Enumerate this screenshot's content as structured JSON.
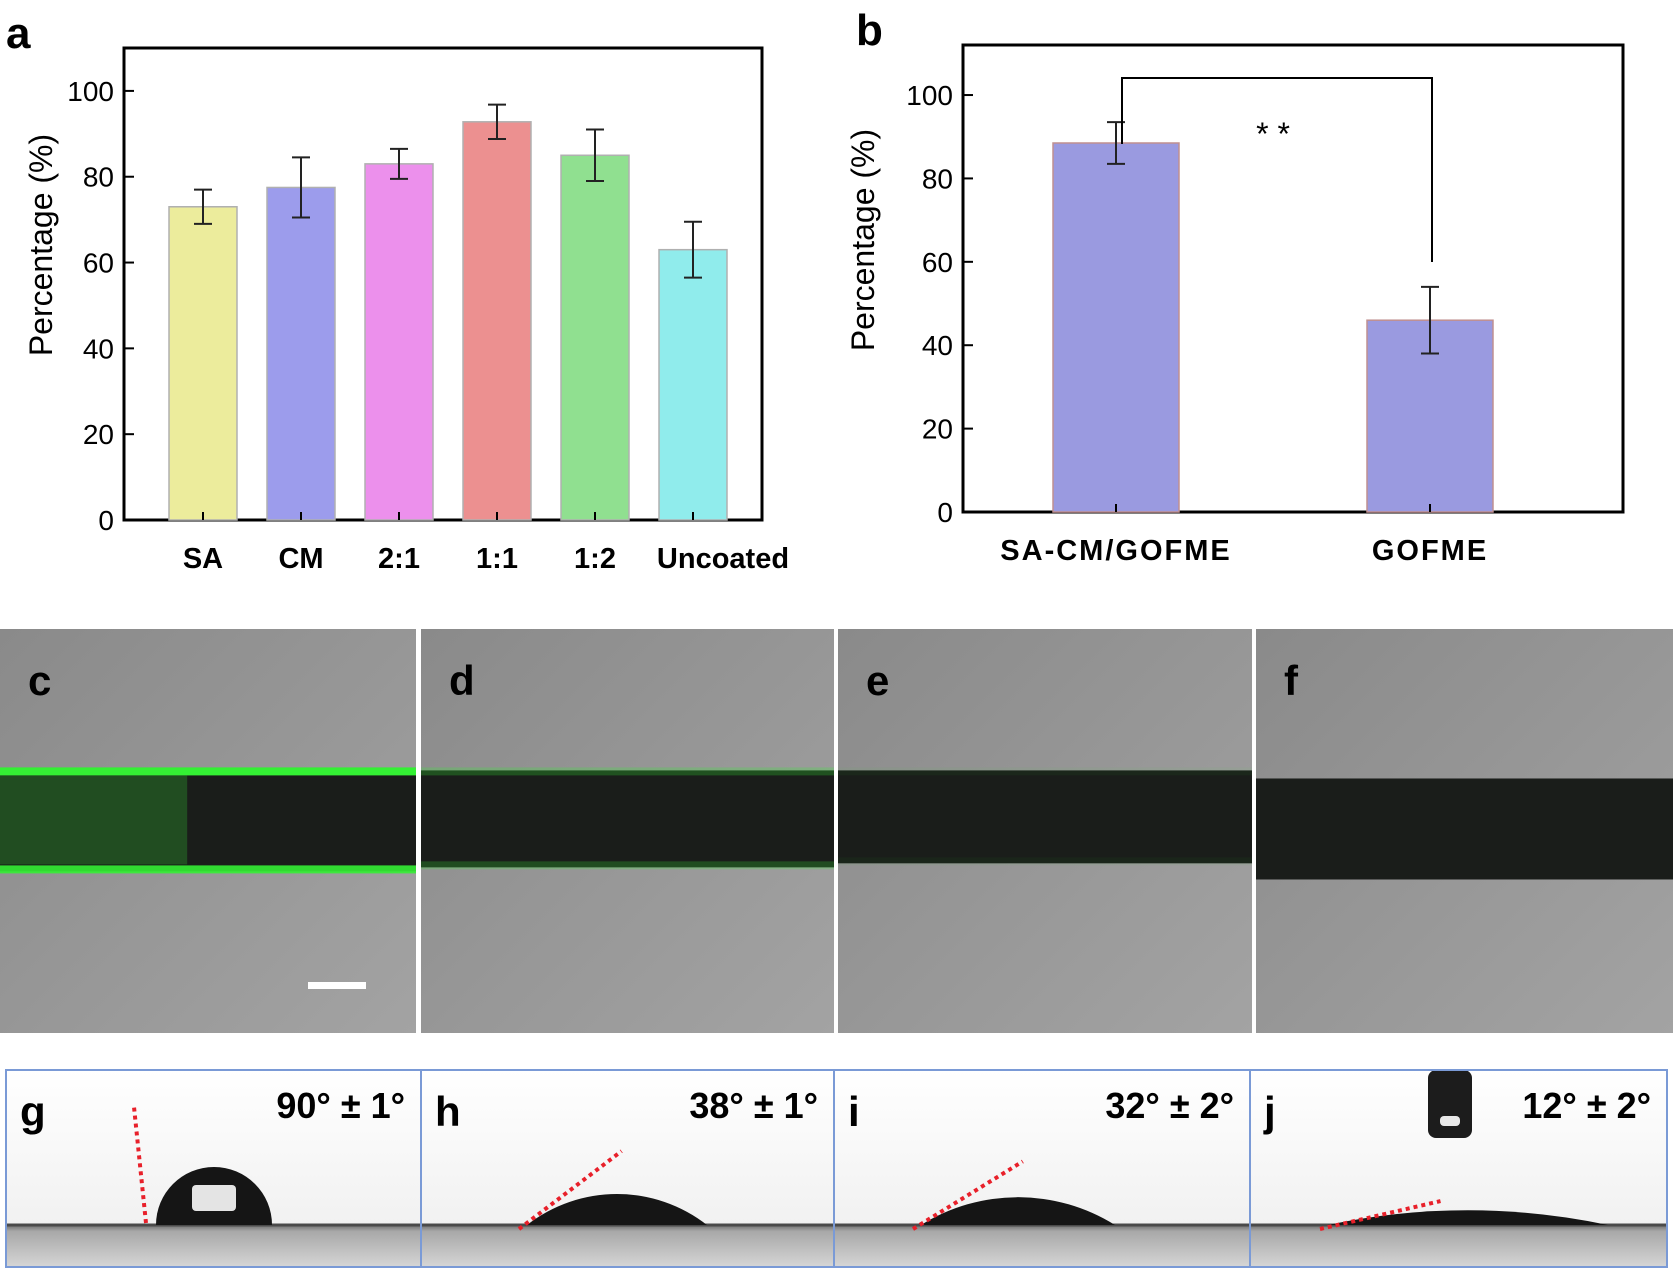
{
  "panel_labels": {
    "a": "a",
    "b": "b",
    "c": "c",
    "d": "d",
    "e": "e",
    "f": "f",
    "g": "g",
    "h": "h",
    "i": "i",
    "j": "j"
  },
  "chart_data": [
    {
      "type": "bar",
      "panel": "a",
      "ylabel": "Percentage (%)",
      "xlabel": "",
      "ylim": [
        0,
        110
      ],
      "yticks": [
        "0",
        "20",
        "40",
        "60",
        "80",
        "100"
      ],
      "categories": [
        "SA",
        "CM",
        "2:1",
        "1:1",
        "1:2",
        "Uncoated"
      ],
      "values": [
        73,
        77.5,
        83,
        92.8,
        85,
        63
      ],
      "errors": [
        4,
        7,
        3.5,
        4,
        6,
        6.5
      ],
      "colors": [
        "#ecec9c",
        "#9c9cec",
        "#ec90ec",
        "#ec9090",
        "#90e090",
        "#90ecec"
      ],
      "grid": false,
      "legend": "none"
    },
    {
      "type": "bar",
      "panel": "b",
      "ylabel": "Percentage (%)",
      "xlabel": "",
      "ylim": [
        0,
        112
      ],
      "yticks": [
        "0",
        "20",
        "40",
        "60",
        "80",
        "100"
      ],
      "categories": [
        "SA-CM/GOFME",
        "GOFME"
      ],
      "values": [
        88.5,
        46
      ],
      "errors": [
        5,
        8
      ],
      "colors": [
        "#9a9ae0",
        "#9a9ae0"
      ],
      "significance": "* *",
      "grid": false,
      "legend": "none"
    }
  ],
  "images": {
    "fluorescence": [
      {
        "label": "c",
        "fiber_top": 0.35,
        "fiber_bottom": 0.6,
        "green": 1.0
      },
      {
        "label": "d",
        "fiber_top": 0.35,
        "fiber_bottom": 0.59,
        "green": 0.25
      },
      {
        "label": "e",
        "fiber_top": 0.35,
        "fiber_bottom": 0.58,
        "green": 0.05
      },
      {
        "label": "f",
        "fiber_top": 0.37,
        "fiber_bottom": 0.62,
        "green": 0.0
      }
    ],
    "contact_angles": [
      {
        "label": "g",
        "value": "90° ± 1°",
        "angle_deg": 90
      },
      {
        "label": "h",
        "value": "38° ± 1°",
        "angle_deg": 38
      },
      {
        "label": "i",
        "value": "32° ± 2°",
        "angle_deg": 32
      },
      {
        "label": "j",
        "value": "12° ± 2°",
        "angle_deg": 12
      }
    ]
  }
}
